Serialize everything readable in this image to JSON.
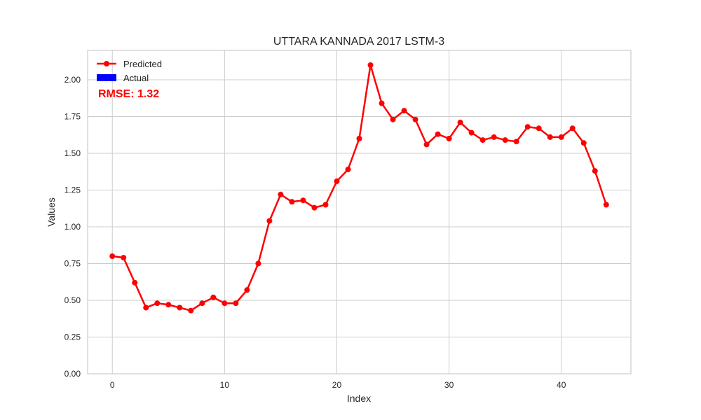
{
  "chart_data": {
    "type": "line",
    "title": "UTTARA KANNADA 2017 LSTM-3",
    "xlabel": "Index",
    "ylabel": "Values",
    "xlim": [
      -2.2,
      46.2
    ],
    "ylim": [
      0,
      2.2
    ],
    "x_ticks": [
      0,
      10,
      20,
      30,
      40
    ],
    "y_ticks": [
      0.0,
      0.25,
      0.5,
      0.75,
      1.0,
      1.25,
      1.5,
      1.75,
      2.0
    ],
    "x_tick_labels": [
      "0",
      "10",
      "20",
      "30",
      "40"
    ],
    "y_tick_labels": [
      "0.00",
      "0.25",
      "0.50",
      "0.75",
      "1.00",
      "1.25",
      "1.50",
      "1.75",
      "2.00"
    ],
    "grid": true,
    "legend_position": "top-left",
    "series": [
      {
        "name": "Predicted",
        "color": "#ff0000",
        "marker": "circle",
        "x": [
          0,
          1,
          2,
          3,
          4,
          5,
          6,
          7,
          8,
          9,
          10,
          11,
          12,
          13,
          14,
          15,
          16,
          17,
          18,
          19,
          20,
          21,
          22,
          23,
          24,
          25,
          26,
          27,
          28,
          29,
          30,
          31,
          32,
          33,
          34,
          35,
          36,
          37,
          38,
          39,
          40,
          41,
          42,
          43,
          44
        ],
        "values": [
          0.8,
          0.79,
          0.62,
          0.45,
          0.48,
          0.47,
          0.45,
          0.43,
          0.48,
          0.52,
          0.48,
          0.48,
          0.57,
          0.75,
          1.04,
          1.22,
          1.17,
          1.18,
          1.13,
          1.15,
          1.31,
          1.39,
          1.6,
          2.1,
          1.84,
          1.73,
          1.79,
          1.73,
          1.56,
          1.63,
          1.6,
          1.71,
          1.64,
          1.59,
          1.61,
          1.59,
          1.58,
          1.68,
          1.67,
          1.61,
          1.61,
          1.67,
          1.57,
          1.38,
          1.15
        ]
      },
      {
        "name": "Actual",
        "color": "#0000ff",
        "x": [],
        "values": []
      }
    ],
    "annotations": [
      {
        "text": "RMSE: 1.32",
        "color": "#ff0000",
        "position": "top-left"
      }
    ]
  }
}
